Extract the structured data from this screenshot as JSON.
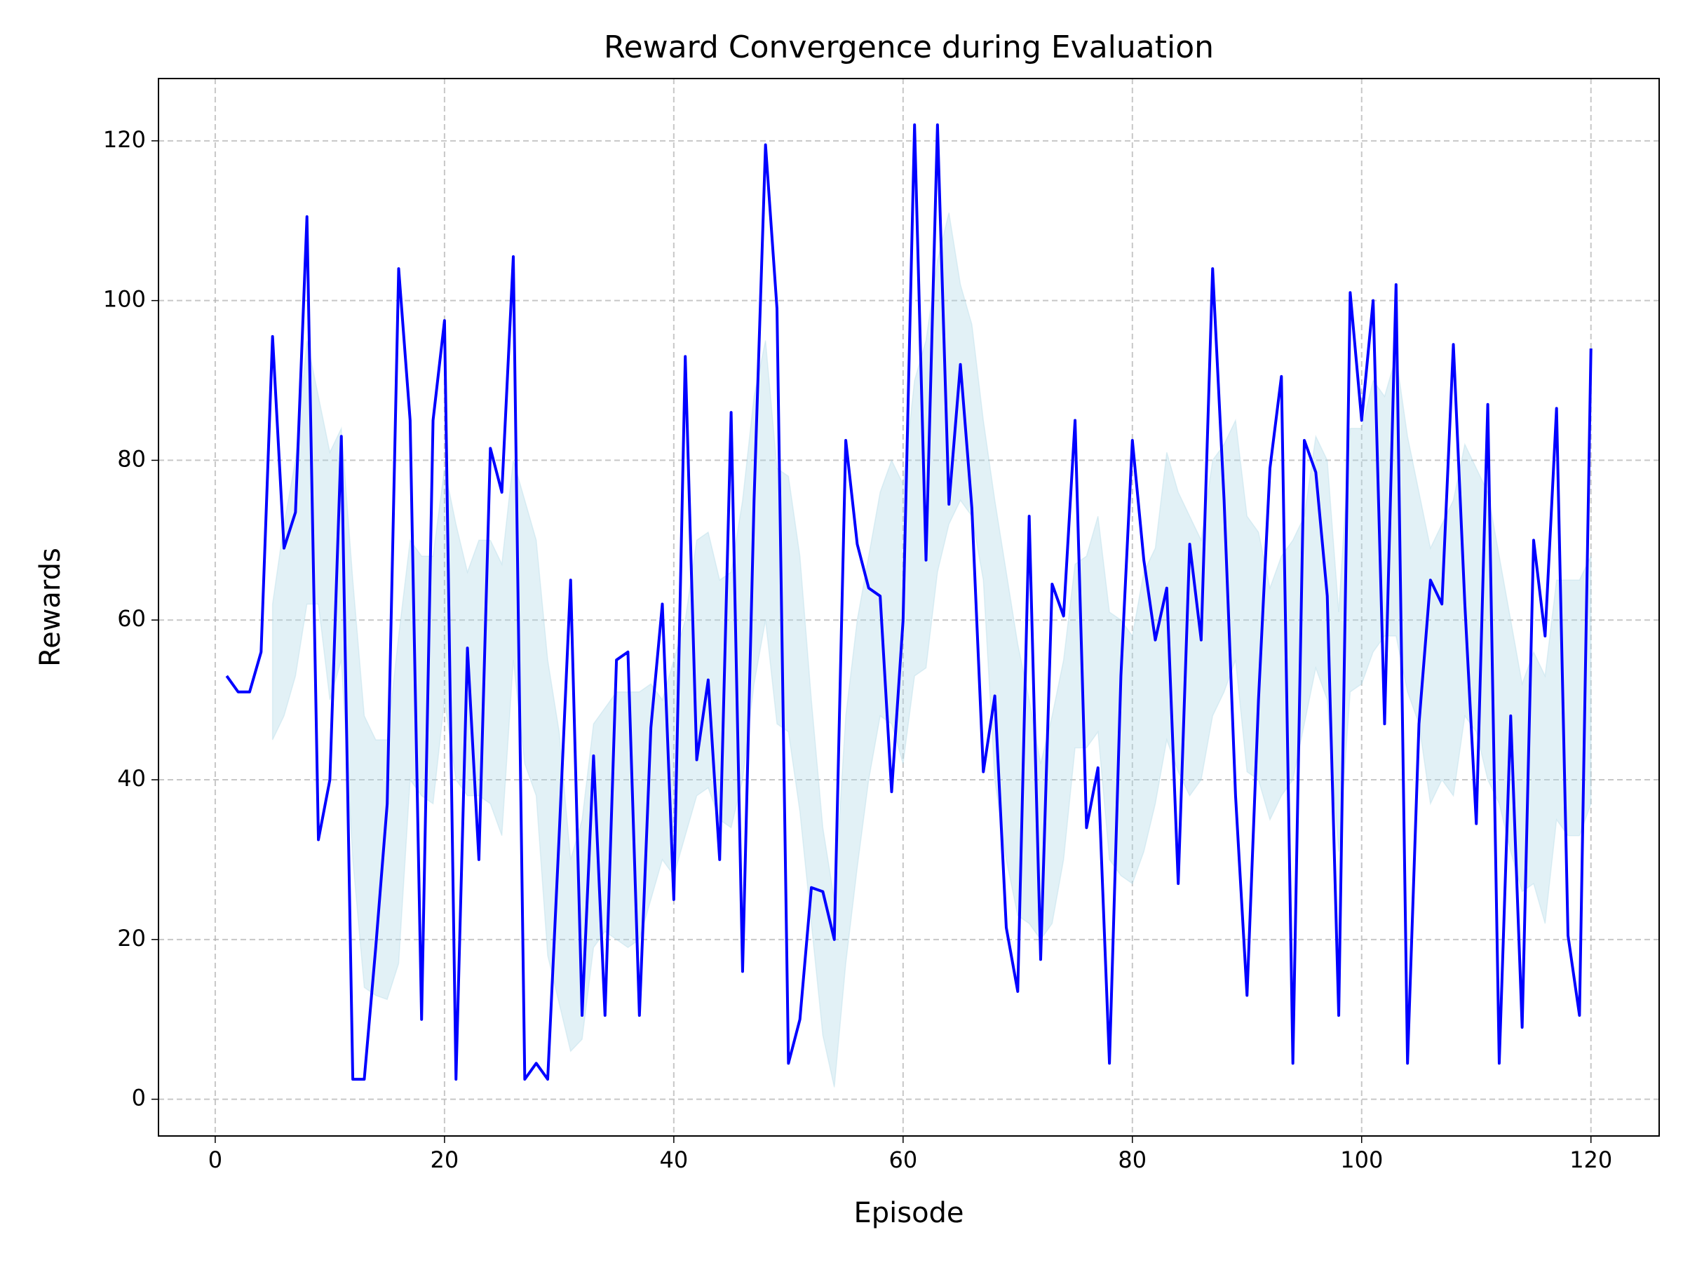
{
  "chart_data": {
    "type": "line",
    "title": "Reward Convergence during Evaluation",
    "xlabel": "Episode",
    "ylabel": "Rewards",
    "x": [
      1,
      2,
      3,
      4,
      5,
      6,
      7,
      8,
      9,
      10,
      11,
      12,
      13,
      14,
      15,
      16,
      17,
      18,
      19,
      20,
      21,
      22,
      23,
      24,
      25,
      26,
      27,
      28,
      29,
      30,
      31,
      32,
      33,
      34,
      35,
      36,
      37,
      38,
      39,
      40,
      41,
      42,
      43,
      44,
      45,
      46,
      47,
      48,
      49,
      50,
      51,
      52,
      53,
      54,
      55,
      56,
      57,
      58,
      59,
      60,
      61,
      62,
      63,
      64,
      65,
      66,
      67,
      68,
      69,
      70,
      71,
      72,
      73,
      74,
      75,
      76,
      77,
      78,
      79,
      80,
      81,
      82,
      83,
      84,
      85,
      86,
      87,
      88,
      89,
      90,
      91,
      92,
      93,
      94,
      95,
      96,
      97,
      98,
      99,
      100,
      101,
      102,
      103,
      104,
      105,
      106,
      107,
      108,
      109,
      110,
      111,
      112,
      113,
      114,
      115,
      116,
      117,
      118,
      119,
      120
    ],
    "values": [
      53,
      51,
      51,
      56,
      95.5,
      69,
      73.5,
      110.5,
      32.5,
      40,
      83,
      2.5,
      2.5,
      19,
      37,
      104,
      85,
      10,
      85,
      97.5,
      2.5,
      56.5,
      30,
      81.5,
      76,
      105.5,
      2.5,
      4.5,
      2.5,
      33,
      65,
      10.5,
      43,
      10.5,
      55,
      56,
      10.5,
      46.5,
      62,
      25,
      93,
      42.5,
      52.5,
      30,
      86,
      16,
      75,
      119.5,
      99,
      4.5,
      10,
      26.5,
      26,
      20,
      82.5,
      69.5,
      64,
      63,
      38.5,
      60,
      122,
      67.5,
      122,
      74.5,
      92,
      74,
      41,
      50.5,
      21.5,
      13.5,
      73,
      17.5,
      64.5,
      60.5,
      85,
      34,
      41.5,
      4.5,
      53,
      82.5,
      67.5,
      57.5,
      64,
      27,
      69.5,
      57.5,
      104,
      75,
      38,
      13,
      50,
      79,
      90.5,
      4.5,
      82.5,
      78.5,
      63,
      10.5,
      101,
      85,
      100,
      47,
      102,
      4.5,
      47,
      65,
      62,
      94.5,
      62,
      34.5,
      87,
      4.5,
      48,
      9,
      70,
      58,
      86.5,
      20.5,
      10.5,
      94
    ],
    "color": "#0000ff",
    "band": {
      "color": "#add8e6",
      "lower": [
        null,
        null,
        null,
        null,
        45,
        48,
        53,
        62,
        62,
        50,
        55,
        30,
        14,
        13,
        12.5,
        17,
        40,
        38,
        37,
        50,
        40,
        38,
        38,
        37,
        33,
        55,
        42,
        38,
        18,
        12,
        6,
        7.5,
        19,
        21,
        20,
        19,
        20,
        25,
        30,
        28,
        33,
        38,
        39,
        35,
        34,
        40,
        52,
        60,
        47,
        46,
        36,
        22,
        8,
        1.5,
        17,
        29,
        40,
        48,
        47,
        42,
        53,
        54,
        66,
        72,
        75,
        73,
        65,
        40,
        30,
        23,
        22,
        20,
        22,
        30,
        44,
        44,
        46,
        30,
        28,
        27,
        31,
        37,
        45,
        41,
        38,
        40,
        48,
        51,
        55,
        41,
        40,
        35,
        38,
        40,
        47,
        54,
        50,
        31,
        51,
        52,
        56,
        58,
        58,
        51,
        47,
        37,
        40,
        38,
        48,
        46,
        40,
        37,
        31,
        26,
        27,
        22,
        35,
        33,
        33,
        37
      ],
      "upper": [
        null,
        null,
        null,
        null,
        62,
        72,
        80,
        95,
        88,
        81,
        84,
        65,
        48,
        45,
        45,
        58,
        70,
        68,
        68,
        79,
        72,
        66,
        70,
        70,
        67,
        80,
        75,
        70,
        55,
        46,
        30,
        35,
        47,
        49,
        51,
        51,
        51,
        52,
        50,
        55,
        60,
        70,
        71,
        65,
        66,
        75,
        88,
        95,
        79,
        78,
        68,
        50,
        34,
        25,
        48,
        60,
        68,
        76,
        80,
        77,
        90,
        95,
        105,
        111,
        102,
        97,
        85,
        75,
        66,
        57,
        50,
        42,
        48,
        55,
        67,
        68,
        73,
        61,
        60,
        58,
        66,
        69,
        81,
        76,
        73,
        70,
        80,
        82,
        85,
        73,
        71,
        64,
        68,
        70,
        73,
        83,
        80,
        61,
        84,
        84,
        90,
        88,
        93,
        83,
        76,
        69,
        72,
        75,
        82,
        79,
        76,
        68,
        60,
        52,
        56,
        53,
        65,
        65,
        65,
        68
      ]
    },
    "xlim": [
      -4.95,
      125.95
    ],
    "ylim": [
      -4.6,
      127.8
    ],
    "xticks": [
      0,
      20,
      40,
      60,
      80,
      100,
      120
    ],
    "yticks": [
      0,
      20,
      40,
      60,
      80,
      100,
      120
    ],
    "grid": true
  }
}
